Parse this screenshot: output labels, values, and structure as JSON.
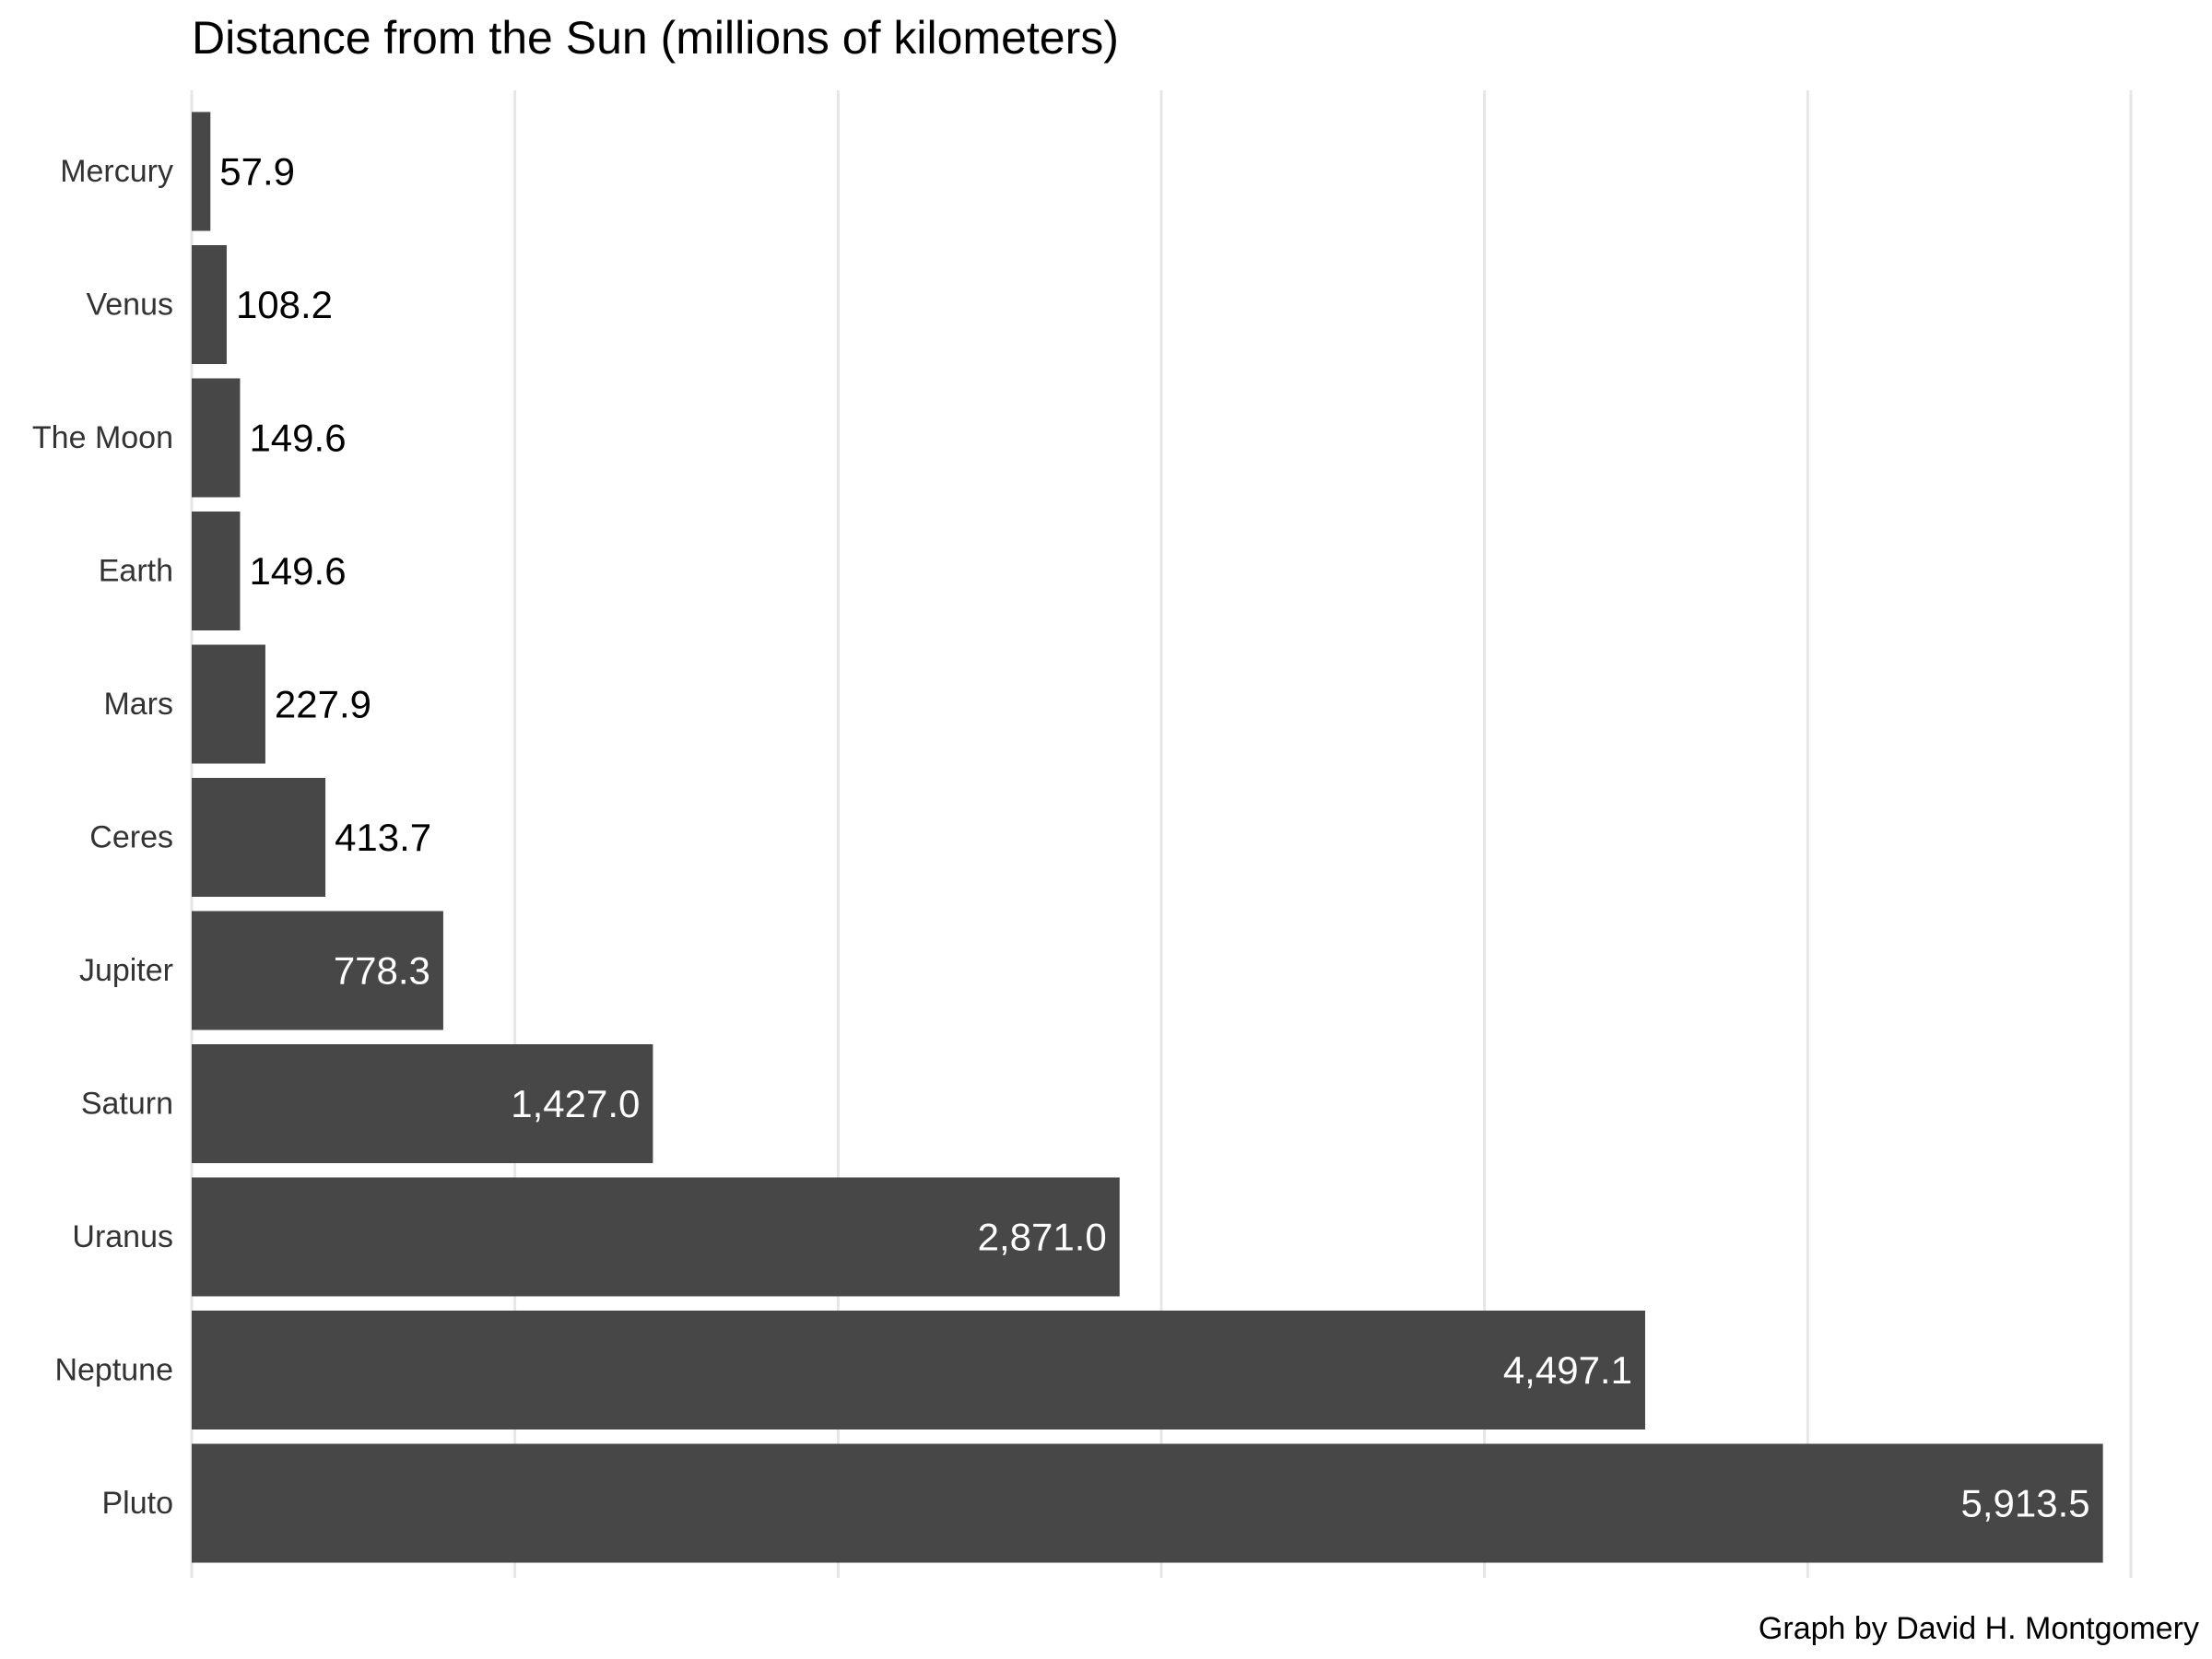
{
  "chart_data": {
    "type": "bar",
    "orientation": "horizontal",
    "title": "Distance from the Sun (millions of kilometers)",
    "caption": "Graph by David H. Montgomery",
    "xlabel": "",
    "ylabel": "",
    "xlim": [
      0,
      6000
    ],
    "x_gridlines": [
      0,
      1000,
      2000,
      3000,
      4000,
      5000,
      6000
    ],
    "grid": true,
    "legend": "none",
    "categories": [
      "Mercury",
      "Venus",
      "The Moon",
      "Earth",
      "Mars",
      "Ceres",
      "Jupiter",
      "Saturn",
      "Uranus",
      "Neptune",
      "Pluto"
    ],
    "values": [
      57.9,
      108.2,
      149.6,
      149.6,
      227.9,
      413.7,
      778.3,
      1427.0,
      2871.0,
      4497.1,
      5913.5
    ],
    "value_labels": [
      "57.9",
      "108.2",
      "149.6",
      "149.6",
      "227.9",
      "413.7",
      "778.3",
      "1,427.0",
      "2,871.0",
      "4,497.1",
      "5,913.5"
    ],
    "bar_color": "#474747",
    "label_color_outside": "#000000",
    "label_color_inside": "#ffffff",
    "grid_color": "#e6e6e6",
    "category_label_color": "#333333"
  }
}
